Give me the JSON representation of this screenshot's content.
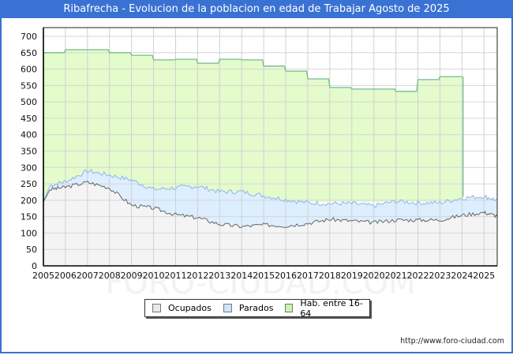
{
  "header": {
    "title": "Ribafrecha - Evolucion de la poblacion en edad de Trabajar Agosto de 2025"
  },
  "footer": {
    "url": "http://www.foro-ciudad.com"
  },
  "watermark": "FORO-CIUDAD.COM",
  "colors": {
    "title_bg": "#3a72d4",
    "ocupados_fill": "#f4f4f4",
    "ocupados_line": "#666666",
    "parados_fill": "#ddeeff",
    "parados_line": "#8fb4e8",
    "hab_fill": "#e4fbcc",
    "hab_line": "#74bb8e"
  },
  "legend": {
    "items": [
      {
        "label": "Ocupados",
        "color": "#e8e8e8"
      },
      {
        "label": "Parados",
        "color": "#cfe4ff"
      },
      {
        "label": "Hab. entre 16-64",
        "color": "#ccf5a8"
      }
    ]
  },
  "chart_data": {
    "type": "area",
    "title": "Ribafrecha - Evolucion de la poblacion en edad de Trabajar Agosto de 2025",
    "xlabel": "",
    "ylabel": "",
    "ylim": [
      0,
      700
    ],
    "yticks": [
      0,
      50,
      100,
      150,
      200,
      250,
      300,
      350,
      400,
      450,
      500,
      550,
      600,
      650,
      700
    ],
    "xticks": [
      "2005",
      "2006",
      "2007",
      "2008",
      "2009",
      "2010",
      "2011",
      "2012",
      "2013",
      "2014",
      "2015",
      "2016",
      "2017",
      "2018",
      "2019",
      "2020",
      "2021",
      "2022",
      "2023",
      "2024",
      "2025"
    ],
    "grid": true,
    "legend_position": "bottom",
    "x": [
      2005.0,
      2005.3,
      2006.0,
      2007.0,
      2008.0,
      2009.0,
      2010.0,
      2011.0,
      2012.0,
      2013.0,
      2014.0,
      2015.0,
      2016.0,
      2017.0,
      2018.0,
      2019.0,
      2020.0,
      2021.0,
      2022.0,
      2023.0,
      2024.0,
      2025.0,
      2025.6
    ],
    "series": [
      {
        "name": "Hab. entre 16-64",
        "x": [
          2005,
          2006,
          2007,
          2008,
          2009,
          2010,
          2011,
          2012,
          2013,
          2014,
          2015,
          2016,
          2017,
          2018,
          2019,
          2020,
          2021,
          2022,
          2023,
          2024
        ],
        "values": [
          650,
          659,
          659,
          650,
          642,
          628,
          630,
          618,
          630,
          628,
          609,
          594,
          570,
          544,
          539,
          539,
          532,
          568,
          577,
          577
        ]
      },
      {
        "name": "Parados",
        "values": [
          195,
          245,
          257,
          289,
          277,
          262,
          233,
          238,
          243,
          226,
          226,
          214,
          202,
          192,
          190,
          190,
          183,
          197,
          192,
          192,
          207,
          212,
          200
        ]
      },
      {
        "name": "Ocupados",
        "values": [
          195,
          233,
          240,
          255,
          238,
          185,
          176,
          156,
          147,
          127,
          120,
          125,
          122,
          130,
          142,
          137,
          132,
          140,
          140,
          140,
          154,
          163,
          152
        ]
      }
    ]
  }
}
